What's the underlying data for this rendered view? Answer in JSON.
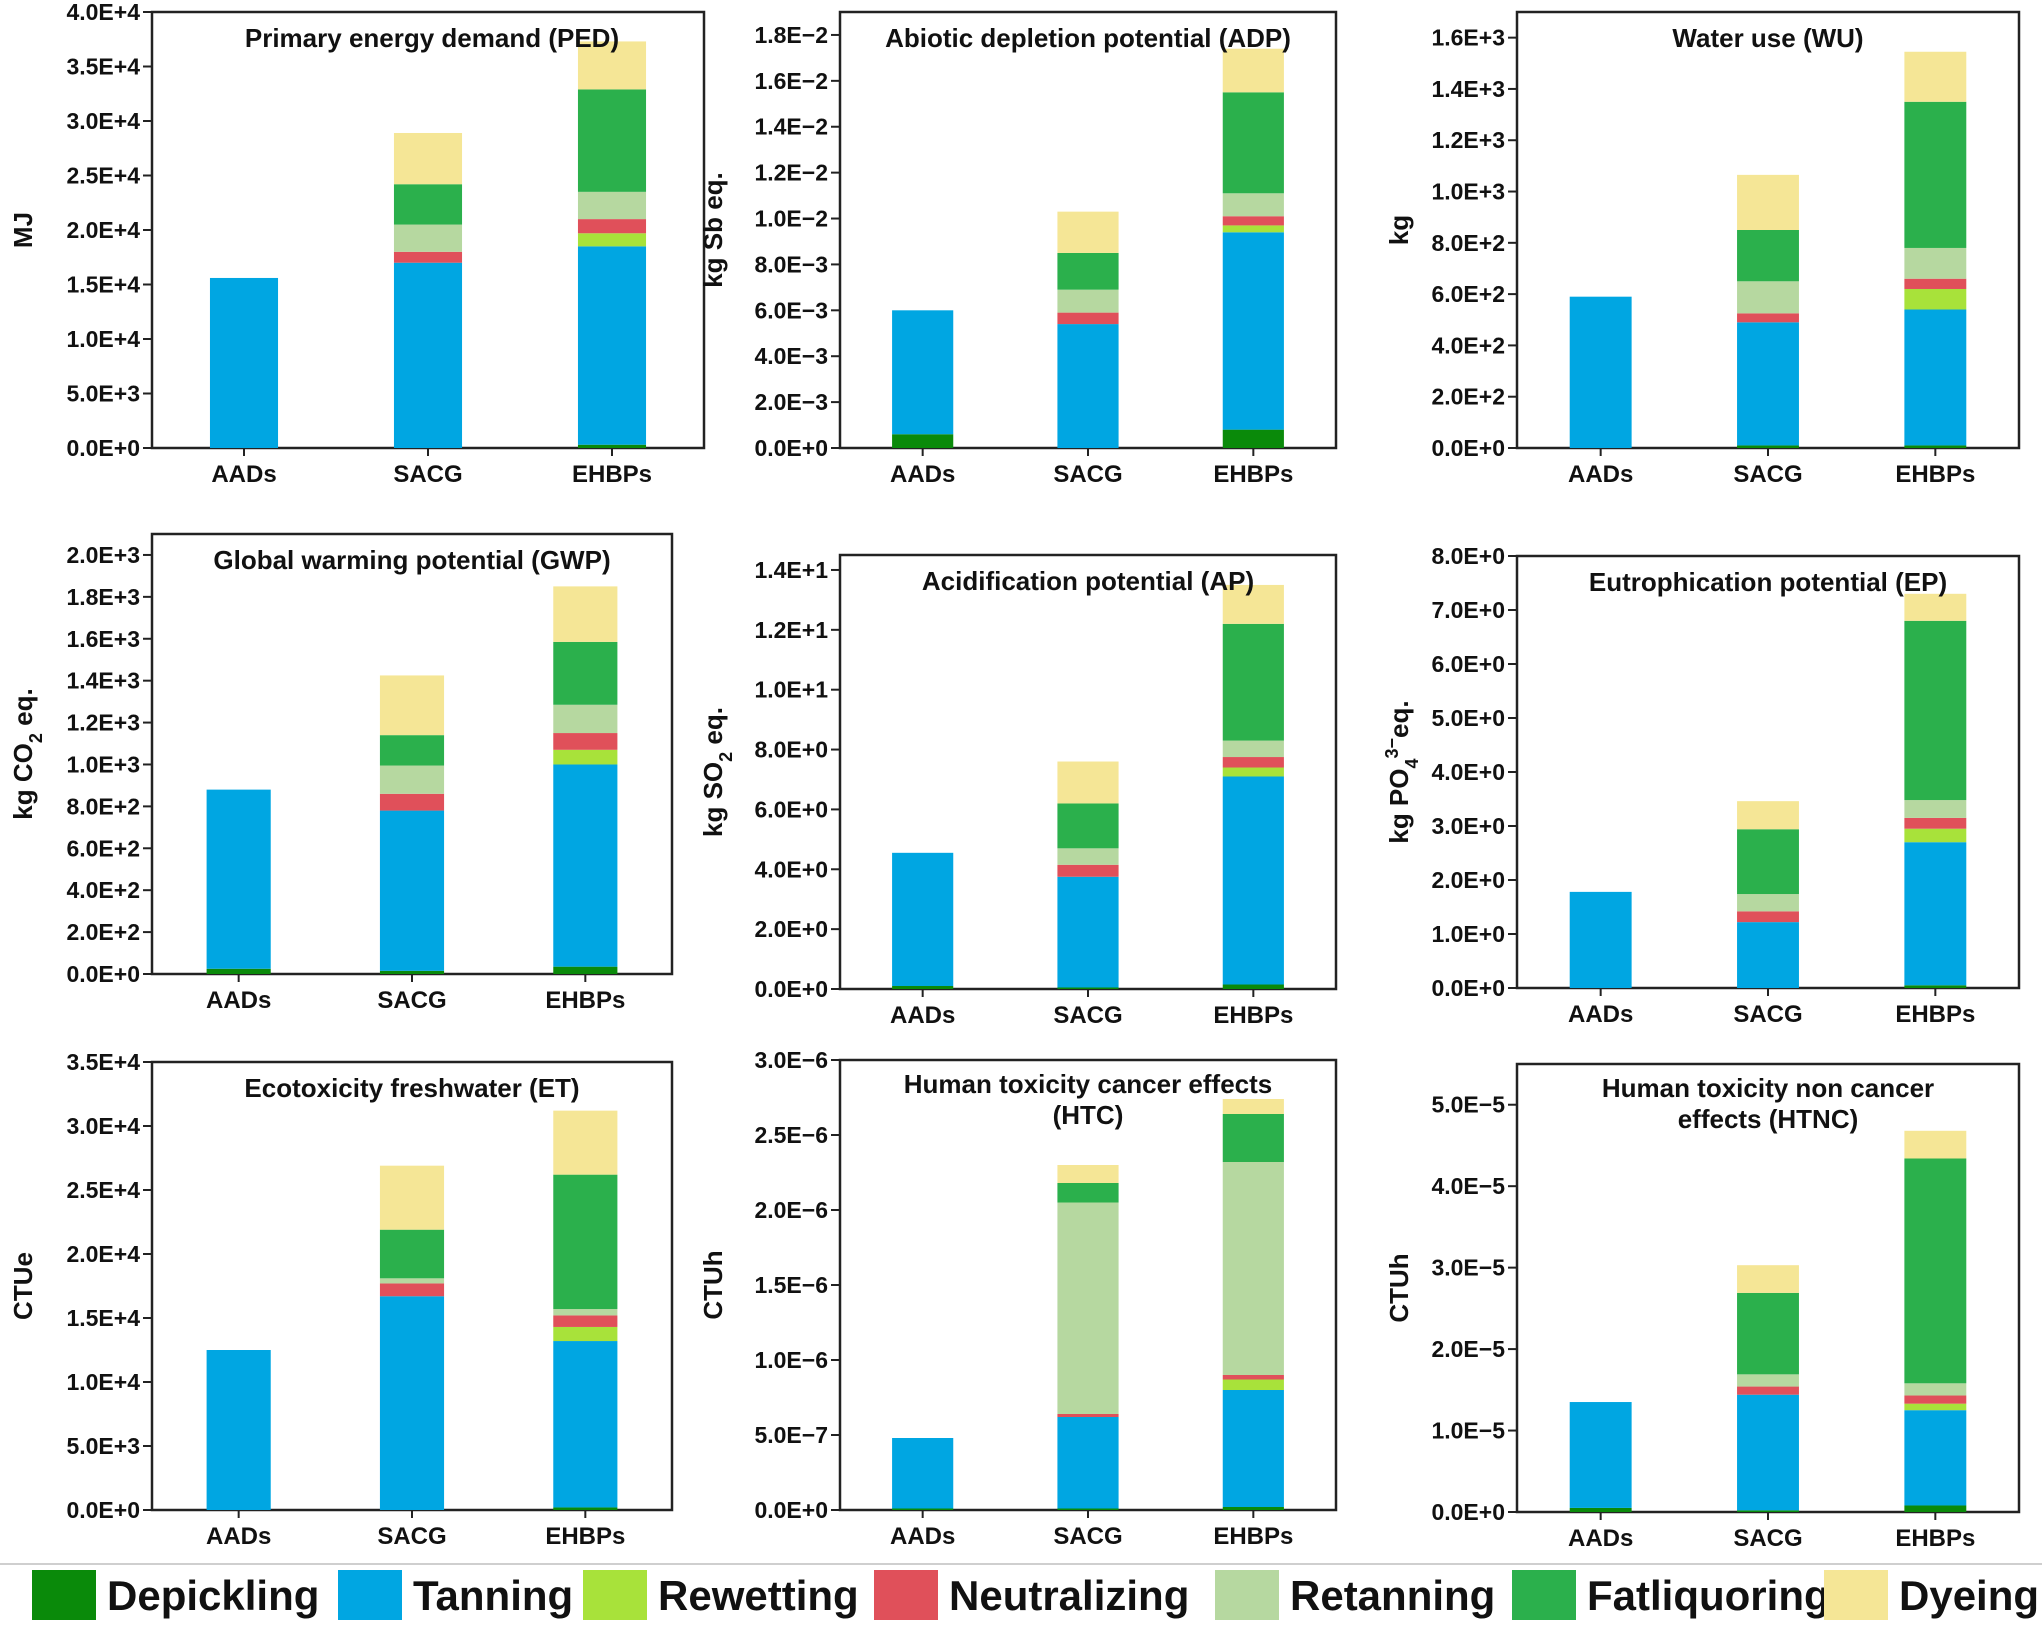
{
  "legend": {
    "items": [
      {
        "name": "Depickling",
        "color": "#0a8a0a"
      },
      {
        "name": "Tanning",
        "color": "#00a6e2"
      },
      {
        "name": "Rewetting",
        "color": "#a8e23a"
      },
      {
        "name": "Neutralizing",
        "color": "#e0505a"
      },
      {
        "name": "Retanning",
        "color": "#b6d8a0"
      },
      {
        "name": "Fatliquoring",
        "color": "#2bb04c"
      },
      {
        "name": "Dyeing",
        "color": "#f5e696"
      }
    ]
  },
  "chart_data": [
    {
      "type": "bar",
      "stacked": true,
      "title": "Primary energy demand (PED)",
      "ylabel": "MJ",
      "categories": [
        "AADs",
        "SACG",
        "EHBPs"
      ],
      "ylim": [
        0,
        40000
      ],
      "yticks": [
        "0.0E+0",
        "5.0E+3",
        "1.0E+4",
        "1.5E+4",
        "2.0E+4",
        "2.5E+4",
        "3.0E+4",
        "3.5E+4",
        "4.0E+4"
      ],
      "series": [
        {
          "name": "Depickling",
          "values": [
            0,
            0,
            300
          ]
        },
        {
          "name": "Tanning",
          "values": [
            15600,
            17000,
            18200
          ]
        },
        {
          "name": "Rewetting",
          "values": [
            0,
            0,
            1200
          ]
        },
        {
          "name": "Neutralizing",
          "values": [
            0,
            1000,
            1300
          ]
        },
        {
          "name": "Retanning",
          "values": [
            0,
            2500,
            2500
          ]
        },
        {
          "name": "Fatliquoring",
          "values": [
            0,
            3700,
            9400
          ]
        },
        {
          "name": "Dyeing",
          "values": [
            0,
            4700,
            4400
          ]
        }
      ]
    },
    {
      "type": "bar",
      "stacked": true,
      "title": "Abiotic depletion potential (ADP)",
      "ylabel": "kg Sb eq.",
      "categories": [
        "AADs",
        "SACG",
        "EHBPs"
      ],
      "ylim": [
        0,
        0.019
      ],
      "yticks": [
        "0.0E+0",
        "2.0E−3",
        "4.0E−3",
        "6.0E−3",
        "8.0E−3",
        "1.0E−2",
        "1.2E−2",
        "1.4E−2",
        "1.6E−2",
        "1.8E−2"
      ],
      "series": [
        {
          "name": "Depickling",
          "values": [
            0.0006,
            0,
            0.0008
          ]
        },
        {
          "name": "Tanning",
          "values": [
            0.0054,
            0.0054,
            0.0086
          ]
        },
        {
          "name": "Rewetting",
          "values": [
            0,
            0,
            0.0003
          ]
        },
        {
          "name": "Neutralizing",
          "values": [
            0,
            0.0005,
            0.0004
          ]
        },
        {
          "name": "Retanning",
          "values": [
            0,
            0.001,
            0.001
          ]
        },
        {
          "name": "Fatliquoring",
          "values": [
            0,
            0.0016,
            0.0044
          ]
        },
        {
          "name": "Dyeing",
          "values": [
            0,
            0.0018,
            0.0019
          ]
        }
      ]
    },
    {
      "type": "bar",
      "stacked": true,
      "title": "Water use (WU)",
      "ylabel": "kg",
      "categories": [
        "AADs",
        "SACG",
        "EHBPs"
      ],
      "ylim": [
        0,
        1700
      ],
      "yticks": [
        "0.0E+0",
        "2.0E+2",
        "4.0E+2",
        "6.0E+2",
        "8.0E+2",
        "1.0E+3",
        "1.2E+3",
        "1.4E+3",
        "1.6E+3"
      ],
      "series": [
        {
          "name": "Depickling",
          "values": [
            0,
            10,
            10
          ]
        },
        {
          "name": "Tanning",
          "values": [
            590,
            480,
            530
          ]
        },
        {
          "name": "Rewetting",
          "values": [
            0,
            0,
            80
          ]
        },
        {
          "name": "Neutralizing",
          "values": [
            0,
            35,
            40
          ]
        },
        {
          "name": "Retanning",
          "values": [
            0,
            125,
            120
          ]
        },
        {
          "name": "Fatliquoring",
          "values": [
            0,
            200,
            570
          ]
        },
        {
          "name": "Dyeing",
          "values": [
            0,
            215,
            195
          ]
        }
      ]
    },
    {
      "type": "bar",
      "stacked": true,
      "title": "Global warming potential (GWP)",
      "ylabel": "kg CO2 eq.",
      "categories": [
        "AADs",
        "SACG",
        "EHBPs"
      ],
      "ylim": [
        0,
        2100
      ],
      "yticks": [
        "0.0E+0",
        "2.0E+2",
        "4.0E+2",
        "6.0E+2",
        "8.0E+2",
        "1.0E+3",
        "1.2E+3",
        "1.4E+3",
        "1.6E+3",
        "1.8E+3",
        "2.0E+3"
      ],
      "series": [
        {
          "name": "Depickling",
          "values": [
            25,
            15,
            35
          ]
        },
        {
          "name": "Tanning",
          "values": [
            855,
            765,
            965
          ]
        },
        {
          "name": "Rewetting",
          "values": [
            0,
            0,
            70
          ]
        },
        {
          "name": "Neutralizing",
          "values": [
            0,
            80,
            80
          ]
        },
        {
          "name": "Retanning",
          "values": [
            0,
            135,
            135
          ]
        },
        {
          "name": "Fatliquoring",
          "values": [
            0,
            145,
            300
          ]
        },
        {
          "name": "Dyeing",
          "values": [
            0,
            285,
            265
          ]
        }
      ]
    },
    {
      "type": "bar",
      "stacked": true,
      "title": "Acidification potential (AP)",
      "ylabel": "kg SO2 eq.",
      "categories": [
        "AADs",
        "SACG",
        "EHBPs"
      ],
      "ylim": [
        0,
        14.5
      ],
      "yticks": [
        "0.0E+0",
        "2.0E+0",
        "4.0E+0",
        "6.0E+0",
        "8.0E+0",
        "1.0E+1",
        "1.2E+1",
        "1.4E+1"
      ],
      "series": [
        {
          "name": "Depickling",
          "values": [
            0.1,
            0.05,
            0.15
          ]
        },
        {
          "name": "Tanning",
          "values": [
            4.45,
            3.7,
            6.95
          ]
        },
        {
          "name": "Rewetting",
          "values": [
            0,
            0,
            0.3
          ]
        },
        {
          "name": "Neutralizing",
          "values": [
            0,
            0.4,
            0.35
          ]
        },
        {
          "name": "Retanning",
          "values": [
            0,
            0.55,
            0.55
          ]
        },
        {
          "name": "Fatliquoring",
          "values": [
            0,
            1.5,
            3.9
          ]
        },
        {
          "name": "Dyeing",
          "values": [
            0,
            1.4,
            1.3
          ]
        }
      ]
    },
    {
      "type": "bar",
      "stacked": true,
      "title": "Eutrophication potential (EP)",
      "ylabel": "kg PO43−eq.",
      "categories": [
        "AADs",
        "SACG",
        "EHBPs"
      ],
      "ylim": [
        0,
        8
      ],
      "yticks": [
        "0.0E+0",
        "1.0E+0",
        "2.0E+0",
        "3.0E+0",
        "4.0E+0",
        "5.0E+0",
        "6.0E+0",
        "7.0E+0",
        "8.0E+0"
      ],
      "series": [
        {
          "name": "Depickling",
          "values": [
            0,
            0,
            0.05
          ]
        },
        {
          "name": "Tanning",
          "values": [
            1.78,
            1.22,
            2.65
          ]
        },
        {
          "name": "Rewetting",
          "values": [
            0,
            0,
            0.25
          ]
        },
        {
          "name": "Neutralizing",
          "values": [
            0,
            0.2,
            0.2
          ]
        },
        {
          "name": "Retanning",
          "values": [
            0,
            0.32,
            0.33
          ]
        },
        {
          "name": "Fatliquoring",
          "values": [
            0,
            1.2,
            3.32
          ]
        },
        {
          "name": "Dyeing",
          "values": [
            0,
            0.52,
            0.5
          ]
        }
      ]
    },
    {
      "type": "bar",
      "stacked": true,
      "title": "Ecotoxicity freshwater (ET)",
      "ylabel": "CTUe",
      "categories": [
        "AADs",
        "SACG",
        "EHBPs"
      ],
      "ylim": [
        0,
        35000
      ],
      "yticks": [
        "0.0E+0",
        "5.0E+3",
        "1.0E+4",
        "1.5E+4",
        "2.0E+4",
        "2.5E+4",
        "3.0E+4",
        "3.5E+4"
      ],
      "series": [
        {
          "name": "Depickling",
          "values": [
            0,
            0,
            200
          ]
        },
        {
          "name": "Tanning",
          "values": [
            12500,
            16700,
            13000
          ]
        },
        {
          "name": "Rewetting",
          "values": [
            0,
            0,
            1100
          ]
        },
        {
          "name": "Neutralizing",
          "values": [
            0,
            1000,
            900
          ]
        },
        {
          "name": "Retanning",
          "values": [
            0,
            400,
            500
          ]
        },
        {
          "name": "Fatliquoring",
          "values": [
            0,
            3800,
            10500
          ]
        },
        {
          "name": "Dyeing",
          "values": [
            0,
            5000,
            5000
          ]
        }
      ]
    },
    {
      "type": "bar",
      "stacked": true,
      "title": "Human toxicity  cancer effects (HTC)",
      "ylabel": "CTUh",
      "categories": [
        "AADs",
        "SACG",
        "EHBPs"
      ],
      "ylim": [
        0,
        3e-06
      ],
      "yticks": [
        "0.0E+0",
        "5.0E−7",
        "1.0E−6",
        "1.5E−6",
        "2.0E−6",
        "2.5E−6",
        "3.0E−6"
      ],
      "series": [
        {
          "name": "Depickling",
          "values": [
            1e-08,
            1e-08,
            2e-08
          ]
        },
        {
          "name": "Tanning",
          "values": [
            4.7e-07,
            6.1e-07,
            7.8e-07
          ]
        },
        {
          "name": "Rewetting",
          "values": [
            0,
            0,
            7e-08
          ]
        },
        {
          "name": "Neutralizing",
          "values": [
            0,
            2e-08,
            3e-08
          ]
        },
        {
          "name": "Retanning",
          "values": [
            0,
            1.41e-06,
            1.42e-06
          ]
        },
        {
          "name": "Fatliquoring",
          "values": [
            0,
            1.3e-07,
            3.2e-07
          ]
        },
        {
          "name": "Dyeing",
          "values": [
            0,
            1.2e-07,
            1e-07
          ]
        }
      ]
    },
    {
      "type": "bar",
      "stacked": true,
      "title": "Human toxicity non cancer effects (HTNC)",
      "ylabel": "CTUh",
      "categories": [
        "AADs",
        "SACG",
        "EHBPs"
      ],
      "ylim": [
        0,
        5.5e-05
      ],
      "yticks": [
        "0.0E+0",
        "1.0E−5",
        "2.0E−5",
        "3.0E−5",
        "4.0E−5",
        "5.0E−5"
      ],
      "series": [
        {
          "name": "Depickling",
          "values": [
            5e-07,
            2e-07,
            8e-07
          ]
        },
        {
          "name": "Tanning",
          "values": [
            1.3e-05,
            1.42e-05,
            1.17e-05
          ]
        },
        {
          "name": "Rewetting",
          "values": [
            0,
            0,
            8e-07
          ]
        },
        {
          "name": "Neutralizing",
          "values": [
            0,
            1e-06,
            1e-06
          ]
        },
        {
          "name": "Retanning",
          "values": [
            0,
            1.5e-06,
            1.5e-06
          ]
        },
        {
          "name": "Fatliquoring",
          "values": [
            0,
            1e-05,
            2.76e-05
          ]
        },
        {
          "name": "Dyeing",
          "values": [
            0,
            3.4e-06,
            3.4e-06
          ]
        }
      ]
    }
  ]
}
